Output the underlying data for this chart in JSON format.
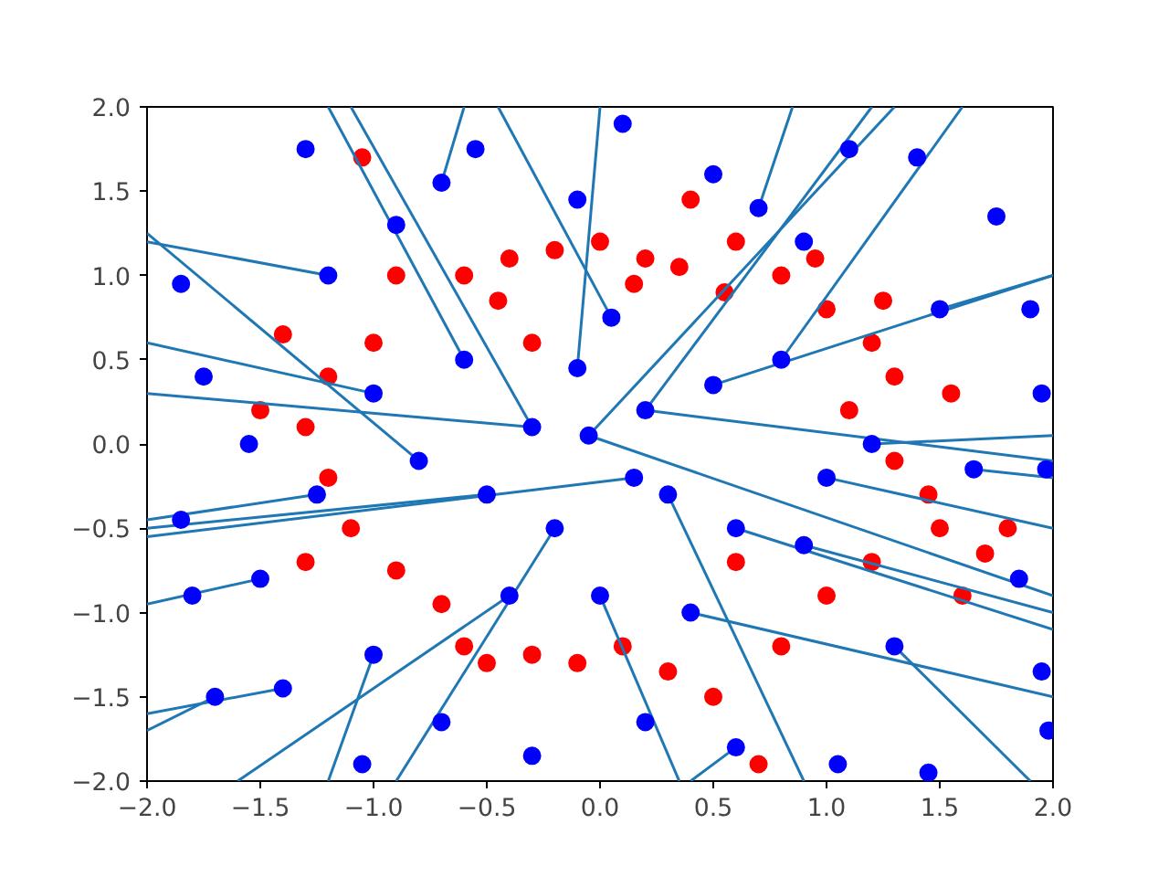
{
  "chart_data": {
    "type": "scatter",
    "marker": "circle",
    "grid": false,
    "xlim": [
      -2,
      2
    ],
    "ylim": [
      -2,
      2
    ],
    "xticks": [
      {
        "value": -2,
        "label": "−2.0"
      },
      {
        "value": -1.5,
        "label": "−1.5"
      },
      {
        "value": -1,
        "label": "−1.0"
      },
      {
        "value": -0.5,
        "label": "−0.5"
      },
      {
        "value": 0,
        "label": "0.0"
      },
      {
        "value": 0.5,
        "label": "0.5"
      },
      {
        "value": 1,
        "label": "1.0"
      },
      {
        "value": 1.5,
        "label": "1.5"
      },
      {
        "value": 2,
        "label": "2.0"
      }
    ],
    "yticks": [
      {
        "value": -2,
        "label": "−2.0"
      },
      {
        "value": -1.5,
        "label": "−1.5"
      },
      {
        "value": -1,
        "label": "−1.0"
      },
      {
        "value": -0.5,
        "label": "−0.5"
      },
      {
        "value": 0,
        "label": "0.0"
      },
      {
        "value": 0.5,
        "label": "0.5"
      },
      {
        "value": 1,
        "label": "1.0"
      },
      {
        "value": 1.5,
        "label": "1.5"
      },
      {
        "value": 2,
        "label": "2.0"
      }
    ],
    "series": [
      {
        "color": "#ff0000",
        "x": [
          -1.05,
          -0.6,
          -0.4,
          -0.2,
          0.0,
          0.2,
          0.4,
          0.6,
          0.8,
          1.0,
          1.2,
          1.3,
          1.1,
          1.3,
          1.5,
          1.7,
          1.6,
          1.2,
          1.0,
          0.8,
          0.5,
          0.3,
          0.1,
          -0.1,
          -0.3,
          -0.5,
          -0.7,
          -0.9,
          -1.1,
          -1.2,
          -1.3,
          -1.2,
          -1.0,
          -1.4,
          -0.9,
          -0.45,
          0.15,
          0.55,
          0.95,
          1.25,
          1.55,
          1.45,
          1.8,
          0.7,
          0.6,
          -0.6,
          -1.3,
          -1.5,
          -0.3,
          0.35
        ],
        "values": [
          1.7,
          1.0,
          1.1,
          1.15,
          1.2,
          1.1,
          1.45,
          1.2,
          1.0,
          0.8,
          0.6,
          0.4,
          0.2,
          -0.1,
          -0.5,
          -0.65,
          -0.9,
          -0.7,
          -0.9,
          -1.2,
          -1.5,
          -1.35,
          -1.2,
          -1.3,
          -1.25,
          -1.3,
          -0.95,
          -0.75,
          -0.5,
          -0.2,
          0.1,
          0.4,
          0.6,
          0.65,
          1.0,
          0.85,
          0.95,
          0.9,
          1.1,
          0.85,
          0.3,
          -0.3,
          -0.5,
          -1.9,
          -0.7,
          -1.2,
          -0.7,
          0.2,
          0.6,
          1.05
        ]
      },
      {
        "type": "line",
        "marker": "none",
        "color": "#1f77b4",
        "x": [
          -0.3,
          -2
        ],
        "values": [
          0.1,
          0.3
        ]
      },
      {
        "type": "line",
        "marker": "none",
        "color": "#1f77b4",
        "x": [
          -0.3,
          -1.1
        ],
        "values": [
          0.1,
          2
        ]
      },
      {
        "type": "line",
        "marker": "none",
        "color": "#1f77b4",
        "x": [
          0.2,
          2
        ],
        "values": [
          0.2,
          -0.1
        ]
      },
      {
        "type": "line",
        "marker": "none",
        "color": "#1f77b4",
        "x": [
          0.2,
          1.2
        ],
        "values": [
          0.2,
          2
        ]
      },
      {
        "type": "line",
        "marker": "none",
        "color": "#1f77b4",
        "x": [
          0.5,
          2
        ],
        "values": [
          0.35,
          1.0
        ]
      },
      {
        "type": "line",
        "marker": "none",
        "color": "#1f77b4",
        "x": [
          0.3,
          0.9
        ],
        "values": [
          -0.3,
          -2
        ]
      },
      {
        "type": "line",
        "marker": "none",
        "color": "#1f77b4",
        "x": [
          0.6,
          2
        ],
        "values": [
          -0.5,
          -1.1
        ]
      },
      {
        "type": "line",
        "marker": "none",
        "color": "#1f77b4",
        "x": [
          -0.2,
          -0.9
        ],
        "values": [
          -0.5,
          -2
        ]
      },
      {
        "type": "line",
        "marker": "none",
        "color": "#1f77b4",
        "x": [
          -0.5,
          -2
        ],
        "values": [
          -0.3,
          -0.5
        ]
      },
      {
        "type": "line",
        "marker": "none",
        "color": "#1f77b4",
        "x": [
          -0.8,
          -2
        ],
        "values": [
          -0.1,
          1.25
        ]
      },
      {
        "type": "line",
        "marker": "none",
        "color": "#1f77b4",
        "x": [
          0.0,
          0.35
        ],
        "values": [
          -0.9,
          -2
        ]
      },
      {
        "type": "line",
        "marker": "none",
        "color": "#1f77b4",
        "x": [
          0.4,
          2
        ],
        "values": [
          -1.0,
          -1.5
        ]
      },
      {
        "type": "line",
        "marker": "none",
        "color": "#1f77b4",
        "x": [
          -0.4,
          -1.6
        ],
        "values": [
          -0.9,
          -2
        ]
      },
      {
        "type": "line",
        "marker": "none",
        "color": "#1f77b4",
        "x": [
          1.0,
          2
        ],
        "values": [
          -0.2,
          -0.5
        ]
      },
      {
        "type": "line",
        "marker": "none",
        "color": "#1f77b4",
        "x": [
          1.2,
          2
        ],
        "values": [
          0.0,
          0.05
        ]
      },
      {
        "type": "line",
        "marker": "none",
        "color": "#1f77b4",
        "x": [
          -1.0,
          -2
        ],
        "values": [
          0.3,
          0.6
        ]
      },
      {
        "type": "line",
        "marker": "none",
        "color": "#1f77b4",
        "x": [
          -0.6,
          -1.2
        ],
        "values": [
          0.5,
          2
        ]
      },
      {
        "type": "line",
        "marker": "none",
        "color": "#1f77b4",
        "x": [
          -0.1,
          0.0
        ],
        "values": [
          0.45,
          2
        ]
      },
      {
        "type": "line",
        "marker": "none",
        "color": "#1f77b4",
        "x": [
          0.8,
          1.6
        ],
        "values": [
          0.5,
          2
        ]
      },
      {
        "type": "line",
        "marker": "none",
        "color": "#1f77b4",
        "x": [
          0.05,
          -0.45
        ],
        "values": [
          0.75,
          2
        ]
      },
      {
        "type": "line",
        "marker": "none",
        "color": "#1f77b4",
        "x": [
          0.15,
          -2
        ],
        "values": [
          -0.2,
          -0.55
        ]
      },
      {
        "type": "line",
        "marker": "none",
        "color": "#1f77b4",
        "x": [
          -0.05,
          1.3
        ],
        "values": [
          0.05,
          2
        ]
      },
      {
        "type": "line",
        "marker": "none",
        "color": "#1f77b4",
        "x": [
          -0.05,
          2
        ],
        "values": [
          0.05,
          -0.9
        ]
      },
      {
        "type": "line",
        "marker": "none",
        "color": "#1f77b4",
        "x": [
          0.9,
          2
        ],
        "values": [
          -0.6,
          -1.0
        ]
      },
      {
        "type": "line",
        "marker": "none",
        "color": "#1f77b4",
        "x": [
          -1.25,
          -2
        ],
        "values": [
          -0.3,
          -0.45
        ]
      },
      {
        "type": "line",
        "marker": "none",
        "color": "#1f77b4",
        "x": [
          -1.5,
          -2
        ],
        "values": [
          -0.8,
          -0.95
        ]
      },
      {
        "type": "line",
        "marker": "none",
        "color": "#1f77b4",
        "x": [
          1.5,
          2
        ],
        "values": [
          0.8,
          1.0
        ]
      },
      {
        "type": "line",
        "marker": "none",
        "color": "#1f77b4",
        "x": [
          -1.2,
          -2
        ],
        "values": [
          1.0,
          1.2
        ]
      },
      {
        "type": "line",
        "marker": "none",
        "color": "#1f77b4",
        "x": [
          0.7,
          0.85
        ],
        "values": [
          1.4,
          2
        ]
      },
      {
        "type": "line",
        "marker": "none",
        "color": "#1f77b4",
        "x": [
          -0.7,
          -0.6
        ],
        "values": [
          1.55,
          2
        ]
      },
      {
        "type": "line",
        "marker": "none",
        "color": "#1f77b4",
        "x": [
          1.3,
          1.9
        ],
        "values": [
          -1.2,
          -2
        ]
      },
      {
        "type": "line",
        "marker": "none",
        "color": "#1f77b4",
        "x": [
          -1.0,
          -1.2
        ],
        "values": [
          -1.25,
          -2
        ]
      },
      {
        "type": "line",
        "marker": "none",
        "color": "#1f77b4",
        "x": [
          0.6,
          0.4
        ],
        "values": [
          -1.8,
          -2
        ]
      },
      {
        "type": "line",
        "marker": "none",
        "color": "#1f77b4",
        "x": [
          -1.4,
          -2
        ],
        "values": [
          -1.45,
          -1.6
        ]
      },
      {
        "type": "line",
        "marker": "none",
        "color": "#1f77b4",
        "x": [
          1.65,
          2
        ],
        "values": [
          -0.15,
          -0.2
        ]
      },
      {
        "type": "line",
        "marker": "none",
        "color": "#1f77b4",
        "x": [
          -1.7,
          -2
        ],
        "values": [
          -1.5,
          -1.7
        ]
      },
      {
        "color": "#0000ff",
        "x": [
          -1.85,
          -1.7,
          -1.3,
          -0.9,
          -0.55,
          -0.1,
          0.1,
          0.5,
          0.9,
          1.1,
          1.4,
          1.75,
          1.9,
          1.95,
          1.97,
          1.85,
          1.95,
          1.98,
          1.45,
          1.05,
          0.6,
          0.2,
          -0.3,
          -0.7,
          -1.05,
          -1.4,
          -1.8,
          -1.85,
          -1.75,
          -1.55,
          -1.0,
          -0.6,
          -0.3,
          -0.1,
          0.2,
          0.5,
          0.8,
          0.3,
          0.6,
          -0.2,
          -0.5,
          -0.8,
          0.0,
          0.4,
          -0.4,
          1.0,
          1.2,
          1.5,
          -1.2,
          -1.5,
          0.7,
          -0.7,
          0.05,
          0.9,
          1.3,
          -1.0,
          -1.25,
          1.65,
          0.15,
          -0.05
        ],
        "values": [
          0.95,
          -1.5,
          1.75,
          1.3,
          1.75,
          1.45,
          1.9,
          1.6,
          1.2,
          1.75,
          1.7,
          1.35,
          0.8,
          0.3,
          -0.15,
          -0.8,
          -1.35,
          -1.7,
          -1.95,
          -1.9,
          -1.8,
          -1.65,
          -1.85,
          -1.65,
          -1.9,
          -1.45,
          -0.9,
          -0.45,
          0.4,
          0.0,
          0.3,
          0.5,
          0.1,
          0.45,
          0.2,
          0.35,
          0.5,
          -0.3,
          -0.5,
          -0.5,
          -0.3,
          -0.1,
          -0.9,
          -1.0,
          -0.9,
          -0.2,
          0.0,
          0.8,
          1.0,
          -0.8,
          1.4,
          1.55,
          0.75,
          -0.6,
          -1.2,
          -1.25,
          -0.3,
          -0.15,
          -0.2,
          0.05
        ]
      }
    ]
  }
}
